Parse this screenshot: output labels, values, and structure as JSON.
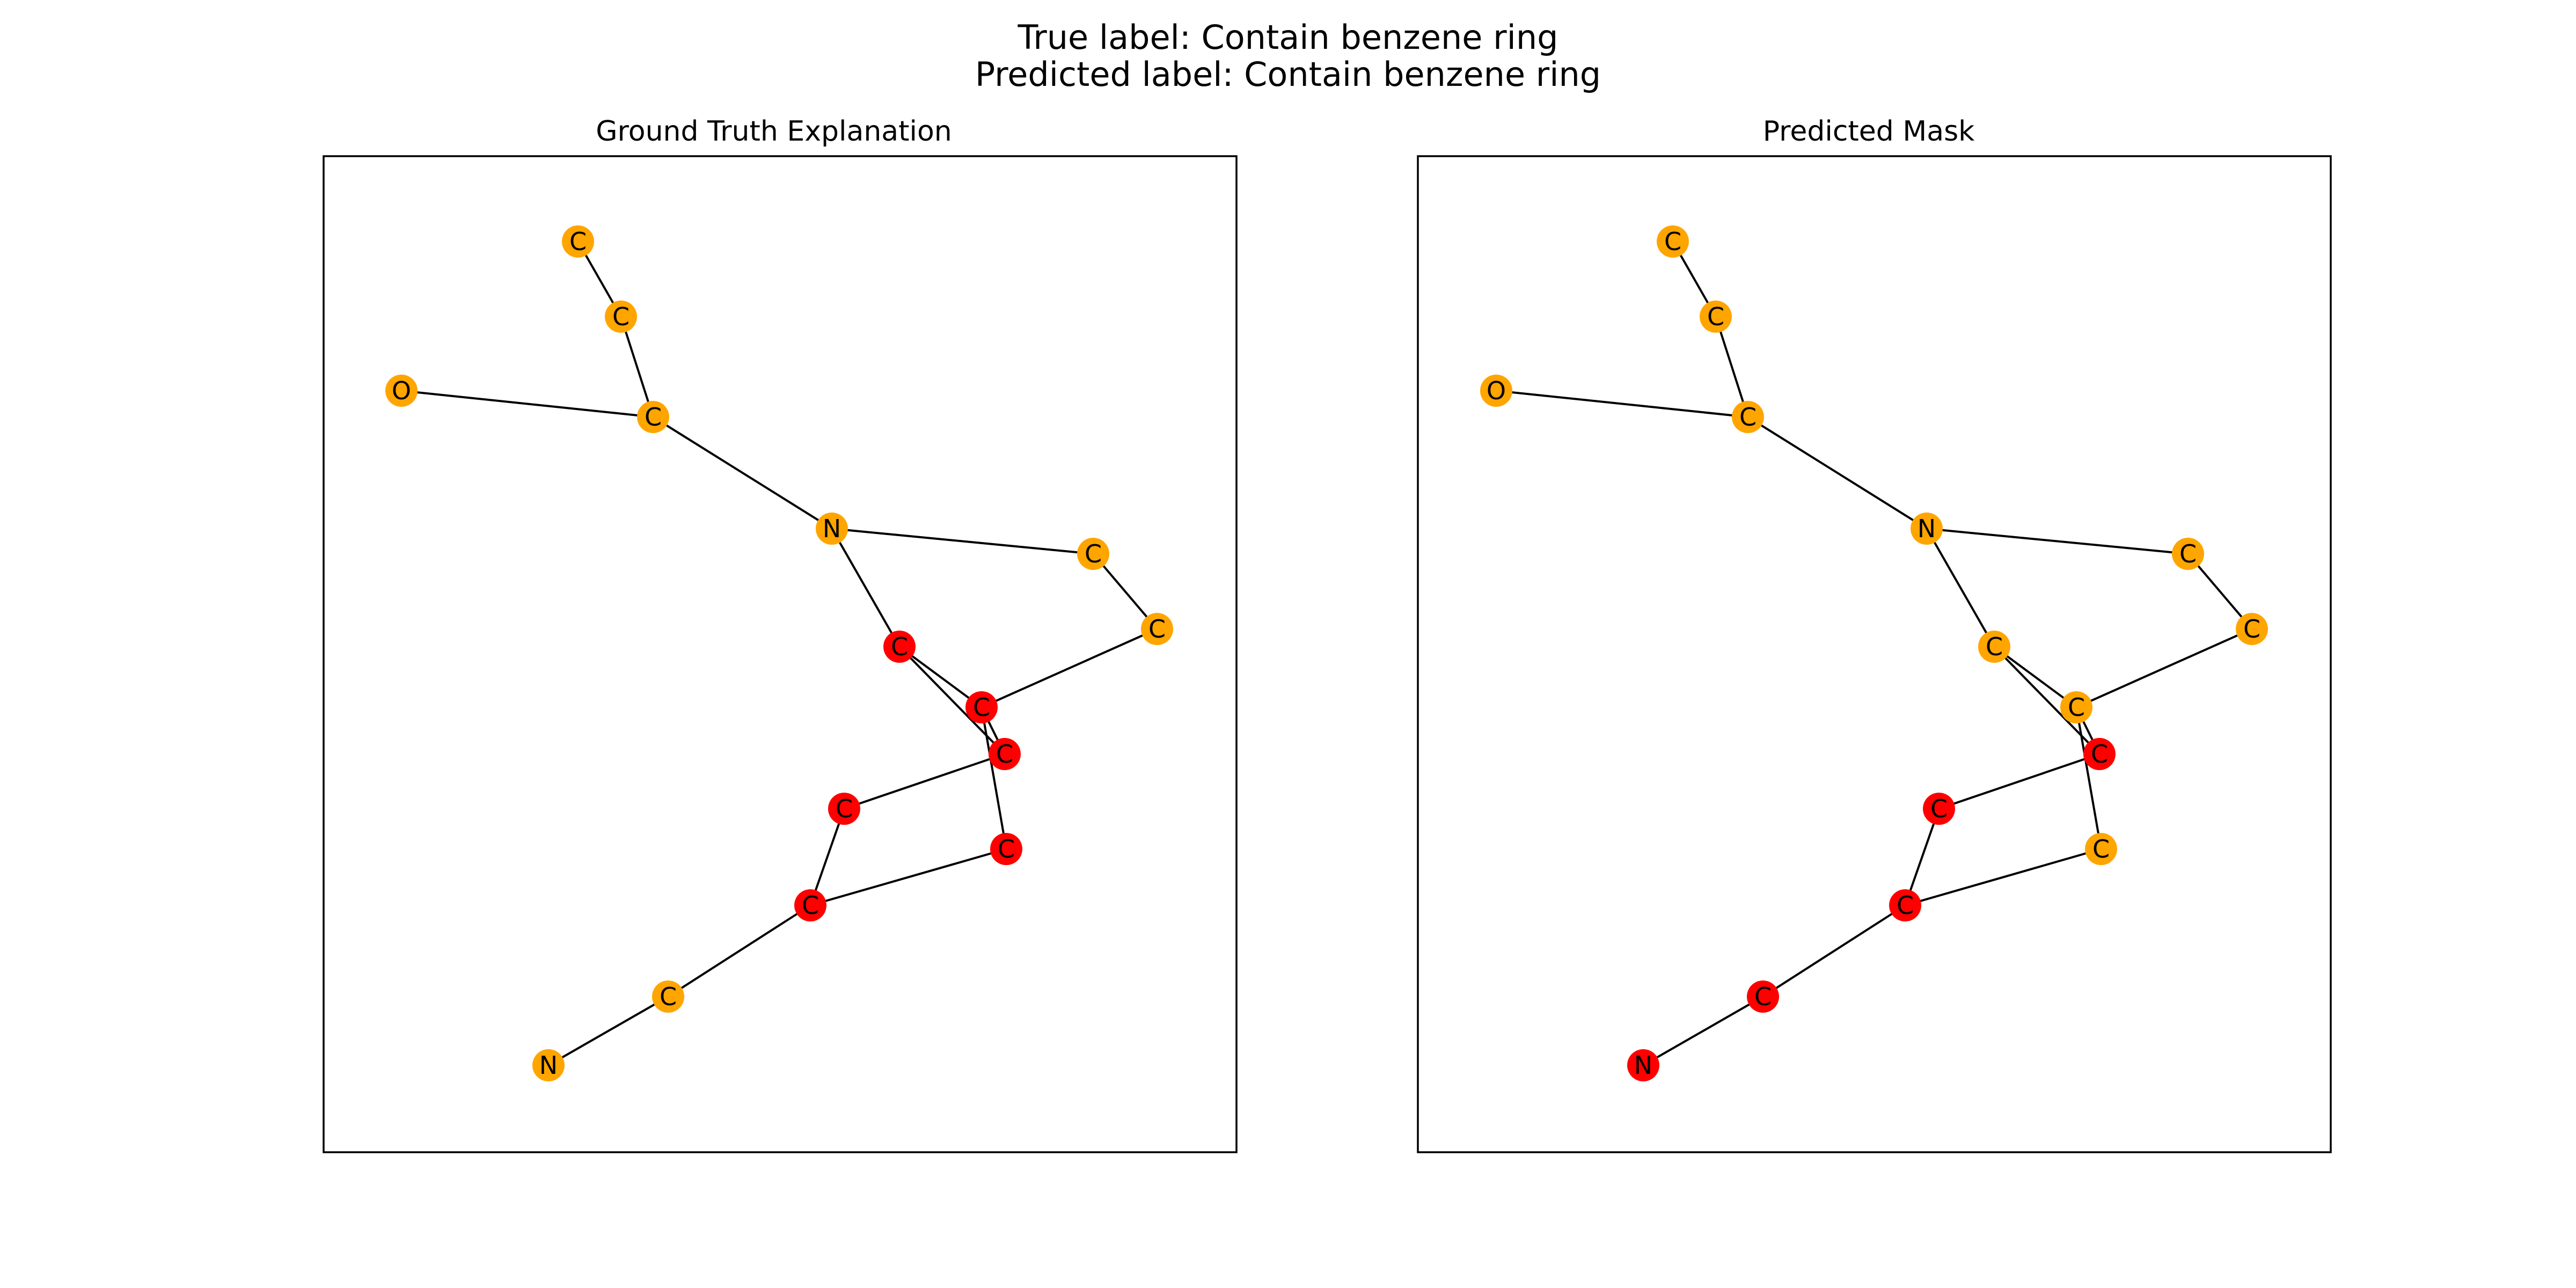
{
  "figure": {
    "suptitle_line1": "True label: Contain benzene ring",
    "suptitle_line2": "Predicted label: Contain benzene ring"
  },
  "colors": {
    "orange": "#FFA500",
    "red": "#FF0000",
    "edge": "#000000"
  },
  "graph": {
    "nodes": [
      {
        "id": 0,
        "label": "C"
      },
      {
        "id": 1,
        "label": "C"
      },
      {
        "id": 2,
        "label": "O"
      },
      {
        "id": 3,
        "label": "C"
      },
      {
        "id": 4,
        "label": "N"
      },
      {
        "id": 5,
        "label": "C"
      },
      {
        "id": 6,
        "label": "C"
      },
      {
        "id": 7,
        "label": "C"
      },
      {
        "id": 8,
        "label": "C"
      },
      {
        "id": 9,
        "label": "C"
      },
      {
        "id": 10,
        "label": "C"
      },
      {
        "id": 11,
        "label": "C"
      },
      {
        "id": 12,
        "label": "C"
      },
      {
        "id": 13,
        "label": "C"
      },
      {
        "id": 14,
        "label": "N"
      }
    ],
    "edges": [
      [
        0,
        1
      ],
      [
        1,
        3
      ],
      [
        2,
        3
      ],
      [
        3,
        4
      ],
      [
        4,
        5
      ],
      [
        5,
        6
      ],
      [
        4,
        7
      ],
      [
        7,
        8
      ],
      [
        8,
        6
      ],
      [
        7,
        9
      ],
      [
        8,
        9
      ],
      [
        9,
        10
      ],
      [
        10,
        12
      ],
      [
        8,
        11
      ],
      [
        11,
        12
      ],
      [
        12,
        13
      ],
      [
        13,
        14
      ]
    ]
  },
  "panels": [
    {
      "title": "Ground Truth Explanation",
      "highlighted_nodes": [
        7,
        8,
        9,
        10,
        11,
        12
      ]
    },
    {
      "title": "Predicted Mask",
      "highlighted_nodes": [
        9,
        10,
        12,
        13,
        14
      ]
    }
  ]
}
